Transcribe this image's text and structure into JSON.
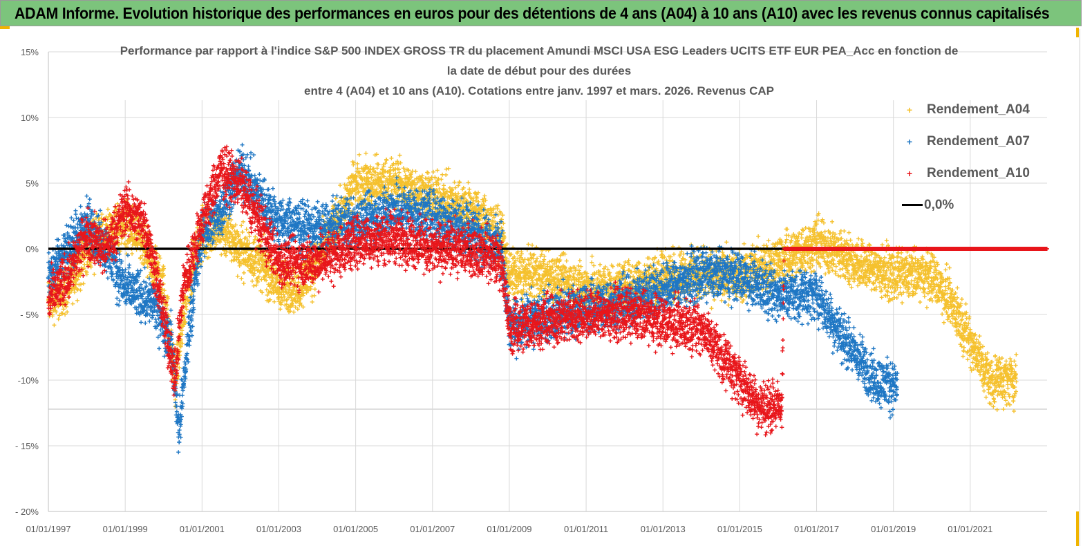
{
  "banner": {
    "title": "ADAM Informe. Evolution historique des performances en euros pour des détentions de 4 ans (A04) à 10 ans (A10) avec les revenus connus capitalisés"
  },
  "chart_data": {
    "type": "scatter",
    "title_lines": [
      "Performance par rapport à l'indice S&P 500 INDEX GROSS TR  du placement Amundi MSCI USA ESG Leaders UCITS ETF EUR PEA_Acc en fonction de",
      "la date de début pour des durées",
      "entre 4 (A04) et 10 ans (A10).  Cotations entre janv. 1997 et mars. 2026. Revenus CAP"
    ],
    "xlabel": "",
    "ylabel": "",
    "xlim": [
      "01/01/1997",
      "01/01/2023"
    ],
    "ylim": [
      -20,
      15
    ],
    "x_tick_labels": [
      "01/01/1997",
      "01/01/1999",
      "01/01/2001",
      "01/01/2003",
      "01/01/2005",
      "01/01/2007",
      "01/01/2009",
      "01/01/2011",
      "01/01/2013",
      "01/01/2015",
      "01/01/2017",
      "01/01/2019",
      "01/01/2021"
    ],
    "y_ticks": [
      15,
      10,
      5,
      0,
      -5,
      -10,
      -15,
      -20
    ],
    "y_tick_labels": [
      "15%",
      "10%",
      "5%",
      "0%",
      "- 5%",
      "-10%",
      "- 15%",
      "- 20%"
    ],
    "grid": true,
    "legend_position": "right",
    "series": [
      {
        "name": "Rendement_A04",
        "color": "#f5c12e",
        "marker": "+",
        "approx_trend_year_value": [
          [
            1997.0,
            -4
          ],
          [
            1997.5,
            -3
          ],
          [
            1998,
            0
          ],
          [
            1998.5,
            1
          ],
          [
            1999,
            2
          ],
          [
            1999.5,
            0
          ],
          [
            2000,
            -3
          ],
          [
            2000.3,
            -10
          ],
          [
            2000.6,
            -3
          ],
          [
            2001,
            1
          ],
          [
            2001.5,
            1.5
          ],
          [
            2002,
            0
          ],
          [
            2002.5,
            -1
          ],
          [
            2003,
            -3
          ],
          [
            2003.5,
            -3
          ],
          [
            2004,
            -1
          ],
          [
            2004.5,
            2
          ],
          [
            2005,
            5
          ],
          [
            2006,
            5
          ],
          [
            2007,
            4
          ],
          [
            2008,
            3
          ],
          [
            2008.8,
            1
          ],
          [
            2009,
            -2
          ],
          [
            2010,
            -2
          ],
          [
            2011,
            -3
          ],
          [
            2012,
            -3
          ],
          [
            2013,
            -2
          ],
          [
            2014,
            -2
          ],
          [
            2015,
            -2
          ],
          [
            2016,
            -1
          ],
          [
            2017,
            0.5
          ],
          [
            2018,
            -1
          ],
          [
            2019,
            -2
          ],
          [
            2020,
            -2
          ],
          [
            2020.5,
            -4
          ],
          [
            2021,
            -7
          ],
          [
            2021.5,
            -10
          ],
          [
            2022.2,
            -10
          ]
        ]
      },
      {
        "name": "Rendement_A07",
        "color": "#1f77c4",
        "marker": "+",
        "approx_trend_year_value": [
          [
            1997,
            -2
          ],
          [
            1998,
            2
          ],
          [
            1998.5,
            0
          ],
          [
            1999,
            -3
          ],
          [
            1999.7,
            -4
          ],
          [
            2000.2,
            -7
          ],
          [
            2000.4,
            -14
          ],
          [
            2000.7,
            -5
          ],
          [
            2001,
            1
          ],
          [
            2001.5,
            3
          ],
          [
            2002,
            6
          ],
          [
            2002.5,
            4
          ],
          [
            2003,
            2
          ],
          [
            2004,
            1.5
          ],
          [
            2005,
            2
          ],
          [
            2006,
            3
          ],
          [
            2007,
            2.5
          ],
          [
            2008,
            1.5
          ],
          [
            2008.8,
            0
          ],
          [
            2009,
            -6
          ],
          [
            2010,
            -5
          ],
          [
            2011,
            -4.5
          ],
          [
            2012,
            -4
          ],
          [
            2013,
            -3
          ],
          [
            2014,
            -2
          ],
          [
            2015,
            -2
          ],
          [
            2016,
            -3.5
          ],
          [
            2017,
            -3.5
          ],
          [
            2017.5,
            -6
          ],
          [
            2018,
            -8
          ],
          [
            2018.5,
            -10
          ],
          [
            2019.1,
            -10.5
          ]
        ]
      },
      {
        "name": "Rendement_A10",
        "color": "#e8161b",
        "marker": "+",
        "approx_trend_year_value": [
          [
            1997,
            -4
          ],
          [
            1997.5,
            -2
          ],
          [
            1998,
            1
          ],
          [
            1998.5,
            0
          ],
          [
            1999,
            3
          ],
          [
            1999.5,
            2
          ],
          [
            1999.8,
            -2
          ],
          [
            2000.3,
            -10
          ],
          [
            2000.5,
            -3
          ],
          [
            2001,
            2
          ],
          [
            2001.5,
            6
          ],
          [
            2002,
            5
          ],
          [
            2002.5,
            2
          ],
          [
            2003,
            -1
          ],
          [
            2004,
            -1
          ],
          [
            2005,
            0.5
          ],
          [
            2006,
            1
          ],
          [
            2007,
            0
          ],
          [
            2008,
            0
          ],
          [
            2008.8,
            -1
          ],
          [
            2009,
            -6
          ],
          [
            2010,
            -5.5
          ],
          [
            2011,
            -5
          ],
          [
            2012,
            -5
          ],
          [
            2013,
            -5.5
          ],
          [
            2014,
            -6
          ],
          [
            2014.5,
            -8
          ],
          [
            2015,
            -10
          ],
          [
            2015.5,
            -12
          ],
          [
            2016.1,
            -12
          ],
          [
            2016.15,
            0
          ],
          [
            2023,
            0
          ]
        ]
      },
      {
        "name": "0,0%",
        "color": "#000000",
        "type": "line",
        "values": [
          [
            1997,
            0
          ],
          [
            2023,
            0
          ]
        ]
      }
    ]
  }
}
